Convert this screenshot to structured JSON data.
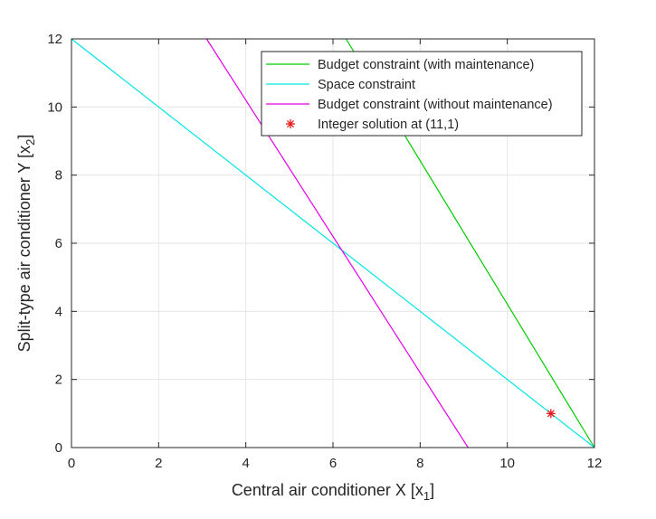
{
  "chart_data": {
    "type": "line",
    "xlabel": "Central air conditioner X [x",
    "xlabel_subscript": "1",
    "xlabel_suffix": "]",
    "ylabel": "Split-type air conditioner Y [x",
    "ylabel_subscript": "2",
    "ylabel_suffix": "]",
    "xlim": [
      0,
      12
    ],
    "ylim": [
      0,
      12
    ],
    "xticks": [
      0,
      2,
      4,
      6,
      8,
      10,
      12
    ],
    "yticks": [
      0,
      2,
      4,
      6,
      8,
      10,
      12
    ],
    "grid": true,
    "legend_position": "top-right",
    "series": [
      {
        "name": "Budget constraint (with maintenance)",
        "color": "#00cc00",
        "kind": "line",
        "x": [
          6.3,
          12
        ],
        "y": [
          12,
          0
        ]
      },
      {
        "name": "Space constraint",
        "color": "#00e5e5",
        "kind": "line",
        "x": [
          0,
          12
        ],
        "y": [
          12,
          0
        ]
      },
      {
        "name": "Budget constraint (without maintenance)",
        "color": "#e500e5",
        "kind": "line",
        "x": [
          3.1,
          9.1
        ],
        "y": [
          12,
          0
        ]
      },
      {
        "name": "Integer solution at (11,1)",
        "color": "#e51a1a",
        "kind": "marker",
        "marker": "*",
        "x": [
          11
        ],
        "y": [
          1
        ]
      }
    ]
  }
}
